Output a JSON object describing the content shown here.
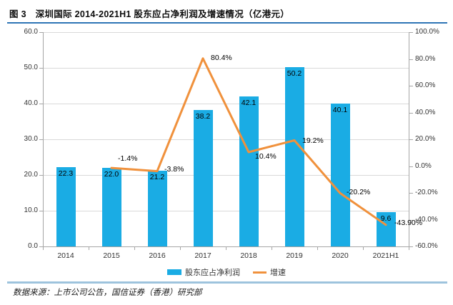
{
  "figure": {
    "title": "图 3　深圳国际 2014-2021H1 股东应占净利润及增速情况（亿港元）",
    "source": "数据来源：上市公司公告，国信证券（香港）研究部"
  },
  "colors": {
    "bar": "#1aace4",
    "line": "#f0913c",
    "title_rule": "#2e75b6",
    "footer_rule": "#9dc3dd",
    "grid": "#d9d9d9",
    "axis": "#a6a6a6",
    "label_text": "#000000"
  },
  "legend": {
    "bar_label": "股东应占净利润",
    "line_label": "增速"
  },
  "chart_data": {
    "type": "bar",
    "subtype": "bar+line combo, dual axis",
    "categories": [
      "2014",
      "2015",
      "2016",
      "2017",
      "2018",
      "2019",
      "2020",
      "2021H1"
    ],
    "series": [
      {
        "name": "股东应占净利润",
        "type": "bar",
        "axis": "left",
        "values": [
          22.3,
          22.0,
          21.2,
          38.2,
          42.1,
          50.2,
          40.1,
          9.6
        ],
        "labels": [
          "22.3",
          "22.0",
          "21.2",
          "38.2",
          "42.1",
          "50.2",
          "40.1",
          "9.6"
        ]
      },
      {
        "name": "增速",
        "type": "line",
        "axis": "right",
        "values": [
          null,
          -1.4,
          -3.8,
          80.4,
          10.4,
          19.2,
          -20.2,
          -43.9
        ],
        "labels": [
          null,
          "-1.4%",
          "-3.8%",
          "80.4%",
          "10.4%",
          "19.2%",
          "-20.2%",
          "-43.90%"
        ]
      }
    ],
    "left_axis": {
      "min": 0,
      "max": 60,
      "step": 10,
      "tick_labels": [
        "0.0",
        "10.0",
        "20.0",
        "30.0",
        "40.0",
        "50.0",
        "60.0"
      ]
    },
    "right_axis": {
      "min": -60,
      "max": 100,
      "step": 20,
      "tick_labels": [
        "-60.0%",
        "-40.0%",
        "-20.0%",
        "0.0%",
        "20.0%",
        "40.0%",
        "60.0%",
        "80.0%",
        "100.0%"
      ]
    },
    "grid": true,
    "legend_position": "bottom"
  }
}
